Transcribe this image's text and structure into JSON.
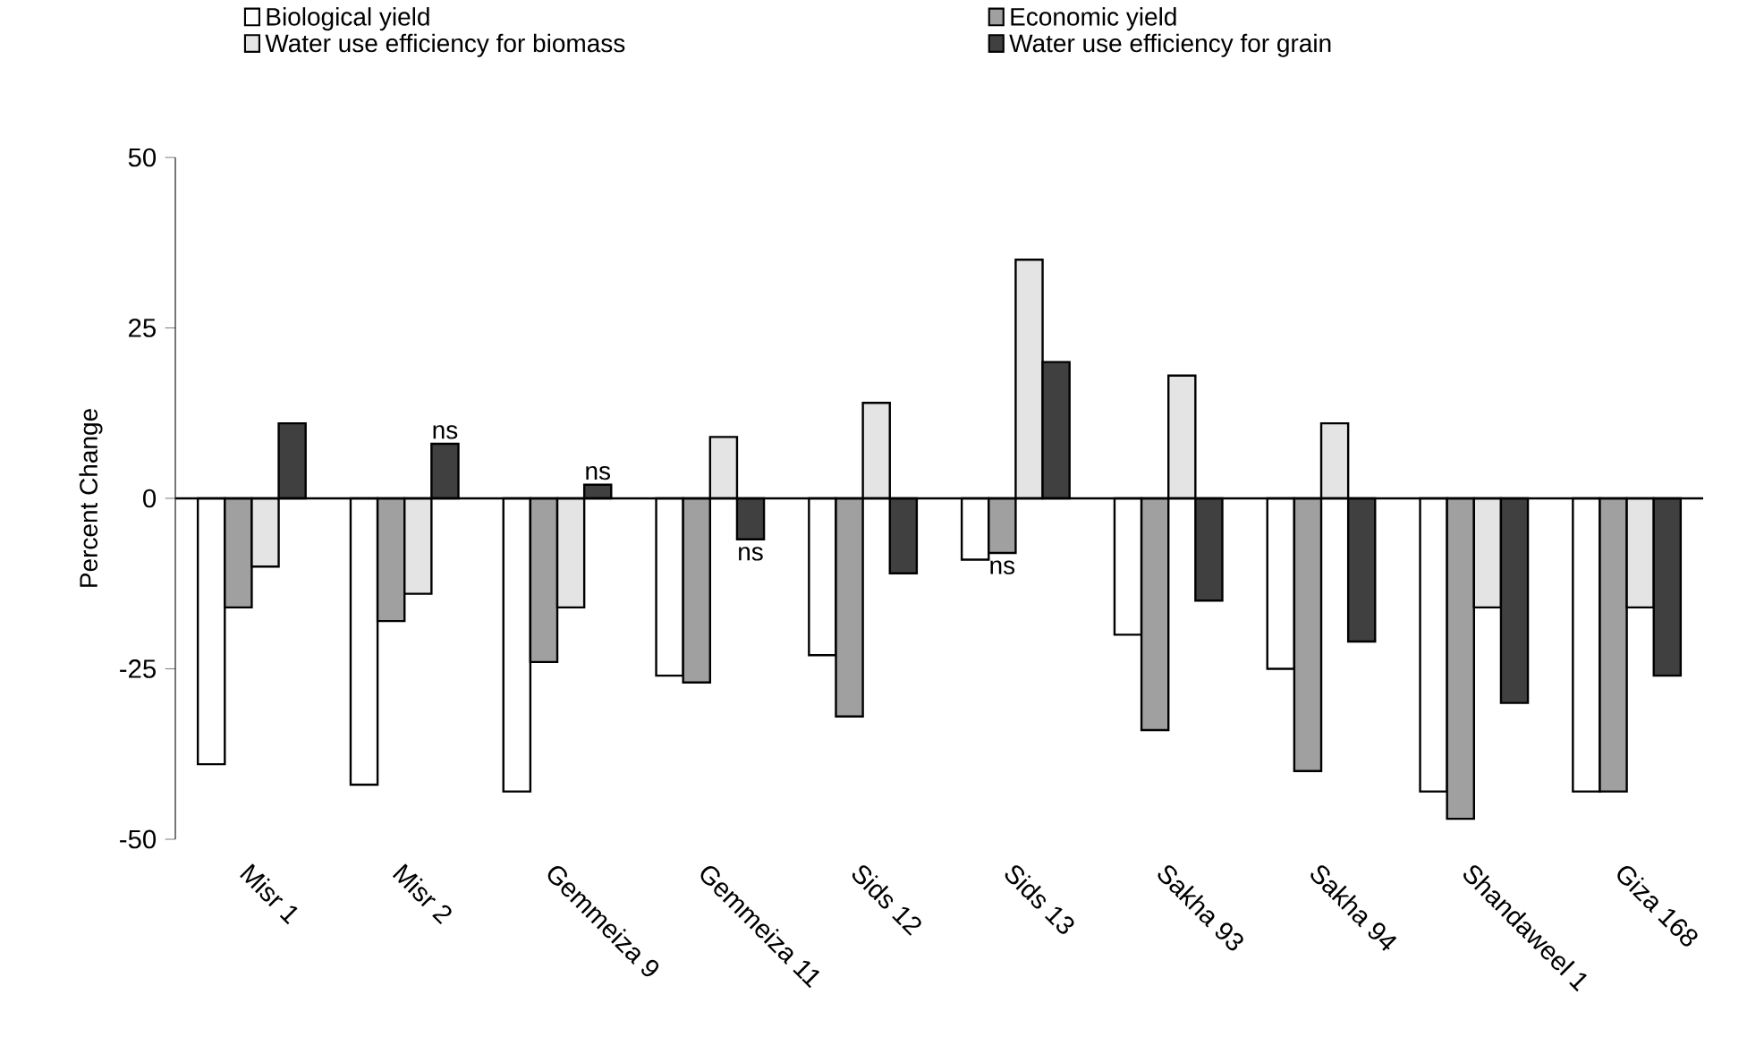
{
  "chart_data": {
    "type": "bar",
    "categories": [
      "Misr 1",
      "Misr 2",
      "Gemmeiza 9",
      "Gemmeiza 11",
      "Sids 12",
      "Sids 13",
      "Sakha 93",
      "Sakha 94",
      "Shandaweel 1",
      "Giza 168"
    ],
    "ylabel": "Percent Change",
    "ylim": [
      -50,
      50
    ],
    "yticks": [
      -50,
      -25,
      0,
      25,
      50
    ],
    "legend": "top",
    "series": [
      {
        "name": "Biological yield",
        "color": "#ffffff",
        "values": [
          -39,
          -42,
          -43,
          -26,
          -23,
          -9,
          -20,
          -25,
          -43,
          -43
        ]
      },
      {
        "name": "Economic yield",
        "color": "#a0a0a0",
        "values": [
          -16,
          -18,
          -24,
          -27,
          -32,
          -8,
          -34,
          -40,
          -47,
          -43
        ]
      },
      {
        "name": "Water use efficiency for biomass",
        "color": "#e4e4e4",
        "values": [
          -10,
          -14,
          -16,
          9,
          14,
          35,
          18,
          11,
          -16,
          -16
        ]
      },
      {
        "name": "Water use efficiency for grain",
        "color": "#404040",
        "values": [
          11,
          8,
          2,
          -6,
          -11,
          20,
          -15,
          -21,
          -30,
          -26
        ]
      }
    ],
    "annotations": [
      "ns",
      "ns",
      {
        "text": "ns",
        "x": "Gemmeiza 11",
        "y": -6
      },
      {
        "text": "ns",
        "x": "Sids 13",
        "y": -8
      }
    ]
  }
}
